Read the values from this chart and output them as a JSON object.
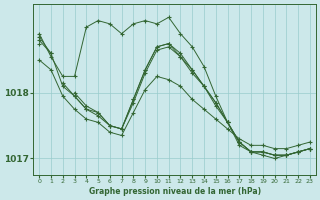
{
  "xlabel": "Graphe pression niveau de la mer (hPa)",
  "bg_color": "#cce8ea",
  "grid_color": "#99cccc",
  "line_color": "#336633",
  "axis_color": "#336633",
  "ylim": [
    1016.75,
    1019.35
  ],
  "xlim": [
    -0.5,
    23.5
  ],
  "yticks": [
    1017,
    1018
  ],
  "xticks": [
    0,
    1,
    2,
    3,
    4,
    5,
    6,
    7,
    8,
    9,
    10,
    11,
    12,
    13,
    14,
    15,
    16,
    17,
    18,
    19,
    20,
    21,
    22,
    23
  ],
  "font_color": "#336633",
  "series": [
    [
      1018.85,
      1018.6,
      1018.1,
      1017.95,
      1017.75,
      1017.7,
      1017.5,
      1017.45,
      1017.9,
      1018.35,
      1018.7,
      1018.75,
      1018.6,
      1018.35,
      1018.1,
      1017.85,
      1017.55,
      1017.25,
      1017.1,
      1017.1,
      1017.05,
      1017.05,
      1017.1,
      1017.15
    ],
    [
      1018.75,
      null,
      1018.15,
      1017.95,
      1017.75,
      1017.65,
      1017.5,
      1017.45,
      1017.85,
      1018.3,
      1018.65,
      1018.7,
      1018.55,
      1018.35,
      1018.1,
      1017.8,
      1017.55,
      1017.25,
      1017.1,
      1017.1,
      1017.05,
      1017.05,
      1017.1,
      1017.15
    ],
    [
      1018.8,
      1018.6,
      null,
      1018.0,
      1017.8,
      1017.7,
      1017.5,
      1017.45,
      1017.9,
      1018.35,
      1018.7,
      1018.75,
      1018.55,
      1018.3,
      1018.1,
      1017.85,
      1017.55,
      1017.25,
      1017.1,
      1017.1,
      1017.05,
      1017.05,
      1017.1,
      1017.15
    ],
    [
      1018.5,
      1018.35,
      1017.95,
      1017.75,
      1017.6,
      1017.55,
      1017.4,
      1017.35,
      1017.7,
      1018.05,
      1018.25,
      1018.2,
      1018.1,
      1017.9,
      1017.75,
      1017.6,
      1017.45,
      1017.3,
      1017.2,
      1017.2,
      1017.15,
      1017.15,
      1017.2,
      1017.25
    ],
    [
      1018.9,
      1018.55,
      1018.25,
      1018.25,
      1019.0,
      1019.1,
      1019.05,
      1018.9,
      1019.05,
      1019.1,
      1019.05,
      1019.15,
      1018.9,
      1018.7,
      1018.4,
      1017.95,
      1017.55,
      1017.2,
      1017.1,
      1017.05,
      1017.0,
      1017.05,
      1017.1,
      1017.15
    ]
  ]
}
